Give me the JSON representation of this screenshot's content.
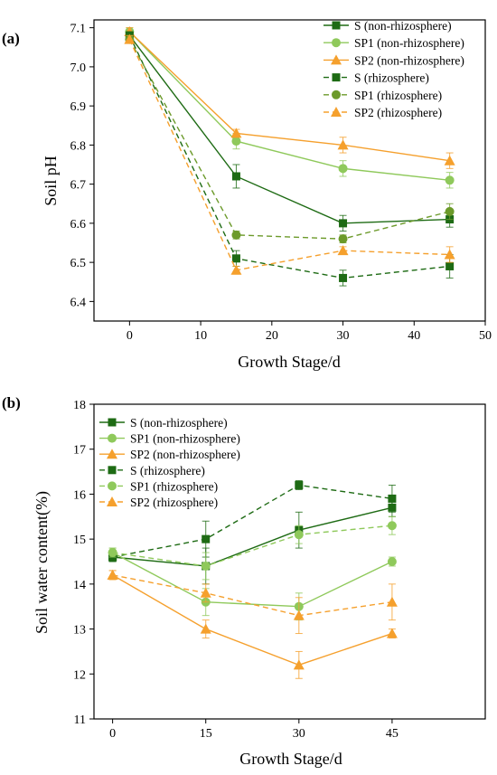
{
  "colors": {
    "S": "#1e6b14",
    "SP1": "#8fc95b",
    "SP2": "#f5a02d",
    "SP1_rhizo": "#6c9a2a"
  },
  "chart_data": [
    {
      "panel_label": "(a)",
      "type": "line",
      "ylabel": "Soil pH",
      "xlabel": "Growth Stage/d",
      "xlim": [
        -5,
        50
      ],
      "ylim": [
        6.35,
        7.12
      ],
      "xticks": [
        0,
        10,
        20,
        30,
        40,
        50
      ],
      "yticks": [
        6.4,
        6.5,
        6.6,
        6.7,
        6.8,
        6.9,
        7.0,
        7.1
      ],
      "ytick_labels": [
        "6.4",
        "6.5",
        "6.6",
        "6.7",
        "6.8",
        "6.9",
        "7.0",
        "7.1"
      ],
      "legend_position": "top-right",
      "series": [
        {
          "name": "S (non-rhizosphere)",
          "key": "S",
          "dash": false,
          "marker": "square",
          "x": [
            0,
            15,
            30,
            45
          ],
          "y": [
            7.08,
            6.72,
            6.6,
            6.61
          ],
          "err": [
            0.01,
            0.03,
            0.02,
            0.02
          ]
        },
        {
          "name": "SP1 (non-rhizosphere)",
          "key": "SP1",
          "dash": false,
          "marker": "circle",
          "x": [
            0,
            15,
            30,
            45
          ],
          "y": [
            7.09,
            6.81,
            6.74,
            6.71
          ],
          "err": [
            0.01,
            0.02,
            0.02,
            0.02
          ]
        },
        {
          "name": "SP2 (non-rhizosphere)",
          "key": "SP2",
          "dash": false,
          "marker": "triangle",
          "x": [
            0,
            15,
            30,
            45
          ],
          "y": [
            7.09,
            6.83,
            6.8,
            6.76
          ],
          "err": [
            0.01,
            0.01,
            0.02,
            0.02
          ]
        },
        {
          "name": "S (rhizosphere)",
          "key": "S",
          "dash": true,
          "marker": "square",
          "x": [
            0,
            15,
            30,
            45
          ],
          "y": [
            7.08,
            6.51,
            6.46,
            6.49
          ],
          "err": [
            0.01,
            0.02,
            0.02,
            0.03
          ]
        },
        {
          "name": "SP1 (rhizosphere)",
          "key": "SP1_rhizo",
          "dash": true,
          "marker": "circle",
          "x": [
            0,
            15,
            30,
            45
          ],
          "y": [
            7.07,
            6.57,
            6.56,
            6.63
          ],
          "err": [
            0.01,
            0.01,
            0.01,
            0.02
          ]
        },
        {
          "name": "SP2 (rhizosphere)",
          "key": "SP2",
          "dash": true,
          "marker": "triangle",
          "x": [
            0,
            15,
            30,
            45
          ],
          "y": [
            7.07,
            6.48,
            6.53,
            6.52
          ],
          "err": [
            0.01,
            0.01,
            0.01,
            0.02
          ]
        }
      ]
    },
    {
      "panel_label": "(b)",
      "type": "line",
      "ylabel": "Soil water content(%)",
      "xlabel": "Growth Stage/d",
      "xlim": [
        -3,
        60
      ],
      "ylim": [
        11,
        18
      ],
      "xticks": [
        0,
        15,
        30,
        45
      ],
      "yticks": [
        11,
        12,
        13,
        14,
        15,
        16,
        17,
        18
      ],
      "ytick_labels": [
        "11",
        "12",
        "13",
        "14",
        "15",
        "16",
        "17",
        "18"
      ],
      "legend_position": "top-left",
      "series": [
        {
          "name": "S (non-rhizosphere)",
          "key": "S",
          "dash": false,
          "marker": "square",
          "x": [
            0,
            15,
            30,
            45
          ],
          "y": [
            14.6,
            14.4,
            15.2,
            15.7
          ],
          "err": [
            0.1,
            0.4,
            0.4,
            0.2
          ]
        },
        {
          "name": "SP1 (non-rhizosphere)",
          "key": "SP1",
          "dash": false,
          "marker": "circle",
          "x": [
            0,
            15,
            30,
            45
          ],
          "y": [
            14.7,
            13.6,
            13.5,
            14.5
          ],
          "err": [
            0.1,
            0.3,
            0.3,
            0.1
          ]
        },
        {
          "name": "SP2 (non-rhizosphere)",
          "key": "SP2",
          "dash": false,
          "marker": "triangle",
          "x": [
            0,
            15,
            30,
            45
          ],
          "y": [
            14.2,
            13.0,
            12.2,
            12.9
          ],
          "err": [
            0.1,
            0.2,
            0.3,
            0.1
          ]
        },
        {
          "name": "S (rhizosphere)",
          "key": "S",
          "dash": true,
          "marker": "square",
          "x": [
            0,
            15,
            30,
            45
          ],
          "y": [
            14.6,
            15.0,
            16.2,
            15.9
          ],
          "err": [
            0.1,
            0.4,
            0.1,
            0.3
          ]
        },
        {
          "name": "SP1 (rhizosphere)",
          "key": "SP1",
          "dash": true,
          "marker": "circle",
          "x": [
            0,
            15,
            30,
            45
          ],
          "y": [
            14.7,
            14.4,
            15.1,
            15.3
          ],
          "err": [
            0.1,
            0.3,
            0.2,
            0.2
          ]
        },
        {
          "name": "SP2 (rhizosphere)",
          "key": "SP2",
          "dash": true,
          "marker": "triangle",
          "x": [
            0,
            15,
            30,
            45
          ],
          "y": [
            14.2,
            13.8,
            13.3,
            13.6
          ],
          "err": [
            0.1,
            0.2,
            0.4,
            0.4
          ]
        }
      ]
    }
  ]
}
